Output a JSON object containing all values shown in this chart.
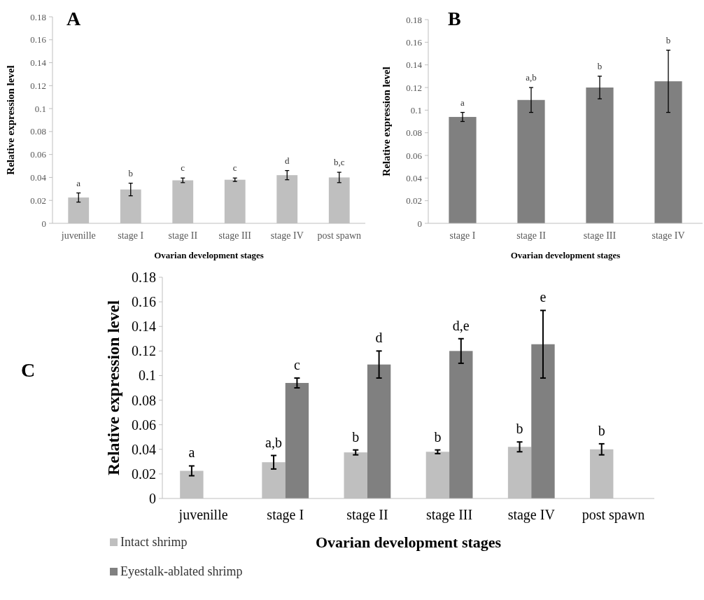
{
  "chart_data": [
    {
      "type": "bar",
      "title": "A",
      "xlabel": "Ovarian development stages",
      "ylabel": "Relative expression level",
      "categories": [
        "juvenille",
        "stage I",
        "stage II",
        "stage III",
        "stage IV",
        "post spawn"
      ],
      "values": [
        0.0225,
        0.0295,
        0.0375,
        0.038,
        0.042,
        0.04
      ],
      "errors": [
        0.004,
        0.0055,
        0.002,
        0.0015,
        0.004,
        0.0045
      ],
      "color": "#bfbfbf",
      "ylim": [
        0,
        0.18
      ],
      "yticks": [
        0,
        0.02,
        0.04,
        0.06,
        0.08,
        0.1,
        0.12,
        0.14,
        0.16,
        0.18
      ],
      "grid": false,
      "legend": false,
      "annotations": [
        "a",
        "b",
        "c",
        "c",
        "d",
        "b,c"
      ]
    },
    {
      "type": "bar",
      "title": "B",
      "xlabel": "Ovarian development stages",
      "ylabel": "Relative expression level",
      "categories": [
        "stage I",
        "stage II",
        "stage III",
        "stage IV"
      ],
      "values": [
        0.094,
        0.109,
        0.12,
        0.1255
      ],
      "errors": [
        0.004,
        0.011,
        0.01,
        0.0275
      ],
      "color": "#808080",
      "ylim": [
        0,
        0.18
      ],
      "yticks": [
        0,
        0.02,
        0.04,
        0.06,
        0.08,
        0.1,
        0.12,
        0.14,
        0.16,
        0.18
      ],
      "grid": false,
      "legend": false,
      "annotations": [
        "a",
        "a,b",
        "b",
        "b"
      ]
    },
    {
      "type": "bar",
      "title": "C",
      "xlabel": "Ovarian development stages",
      "ylabel": "Relative expression level",
      "categories": [
        "juvenille",
        "stage I",
        "stage II",
        "stage III",
        "stage IV",
        "post spawn"
      ],
      "series": [
        {
          "name": "Intact shrimp",
          "color": "#bfbfbf",
          "values": [
            0.0225,
            0.0295,
            0.0375,
            0.038,
            0.042,
            0.04
          ],
          "errors": [
            0.004,
            0.0055,
            0.002,
            0.0015,
            0.004,
            0.0045
          ]
        },
        {
          "name": "Eyestalk-ablated shrimp",
          "color": "#808080",
          "values": [
            null,
            0.094,
            0.109,
            0.12,
            0.1255,
            null
          ],
          "errors": [
            null,
            0.004,
            0.011,
            0.01,
            0.0275,
            null
          ]
        }
      ],
      "ylim": [
        0,
        0.18
      ],
      "yticks": [
        0,
        0.02,
        0.04,
        0.06,
        0.08,
        0.1,
        0.12,
        0.14,
        0.16,
        0.18
      ],
      "grid": false,
      "legend": "bottom",
      "annotations": [
        "a",
        "a,b",
        "c",
        "b",
        "d",
        "b",
        "d,e",
        "b",
        "e",
        "b"
      ]
    }
  ]
}
